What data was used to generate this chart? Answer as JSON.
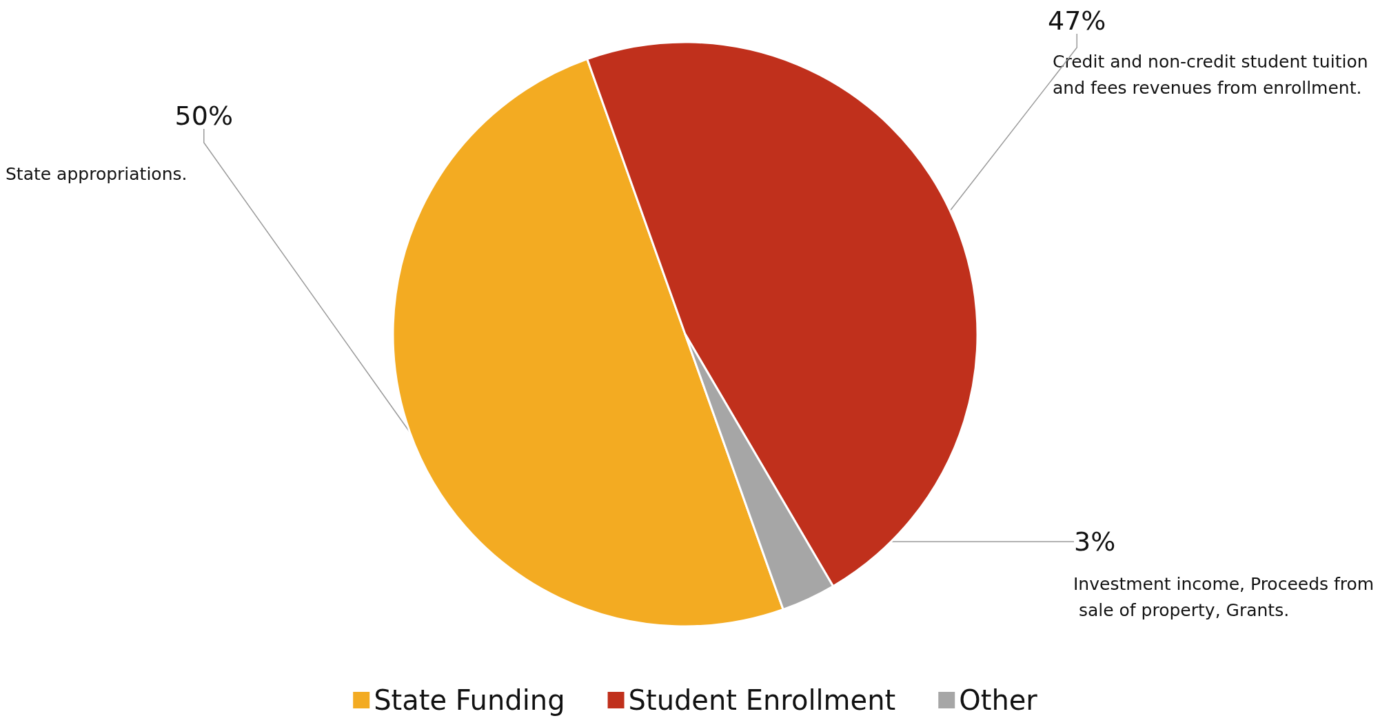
{
  "chart_data": {
    "type": "pie",
    "categories": [
      "State Funding",
      "Student Enrollment",
      "Other"
    ],
    "values": [
      50,
      47,
      3
    ],
    "value_labels": [
      "50%",
      "47%",
      "3%"
    ],
    "colors": [
      "#f3ab22",
      "#c0301c",
      "#a6a6a6"
    ],
    "annotations": [
      "State appropriations.",
      "Credit and non-credit student tuition and fees revenues from enrollment.",
      "Investment income, Proceeds from sale of property, Grants."
    ],
    "legend": "bottom"
  }
}
